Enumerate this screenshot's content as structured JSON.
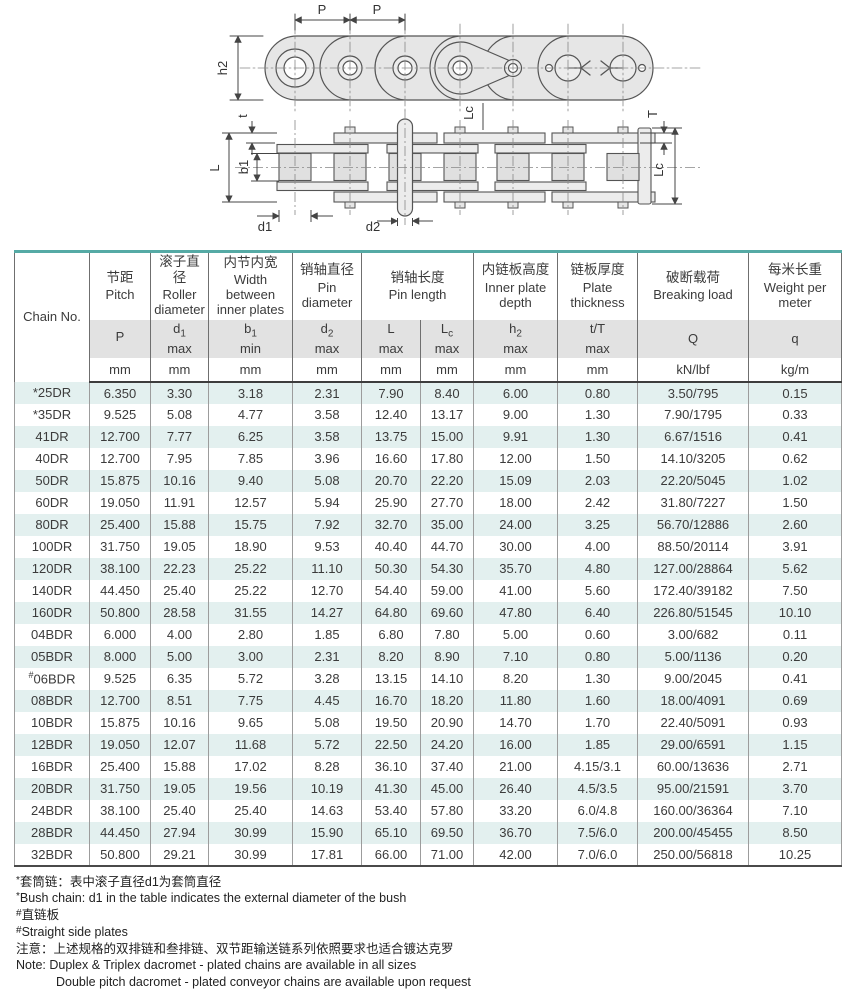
{
  "page": {
    "accent_teal": "#55aaa5"
  },
  "diagram": {
    "side_view": {
      "labels": {
        "p1": "P",
        "p2": "P",
        "h2": "h2"
      }
    },
    "plan_view": {
      "labels": {
        "t": "t",
        "L": "L",
        "b1": "b1",
        "d1": "d1",
        "d2": "d2",
        "lc_top": "Lc",
        "T": "T",
        "lc_right": "Lc"
      }
    }
  },
  "table": {
    "chain_no_label": "Chain No.",
    "columns": {
      "pitch": {
        "cn": "节距",
        "en": "Pitch",
        "sym": "P",
        "sub": "",
        "note": "",
        "unit": "mm"
      },
      "roller": {
        "cn": "滚子直径",
        "en": "Roller diameter",
        "sym": "d",
        "sub": "1",
        "note": "max",
        "unit": "mm"
      },
      "width": {
        "cn": "内节内宽",
        "en": "Width between inner plates",
        "sym": "b",
        "sub": "1",
        "note": "min",
        "unit": "mm"
      },
      "pin_dia": {
        "cn": "销轴直径",
        "en": "Pin diameter",
        "sym": "d",
        "sub": "2",
        "note": "max",
        "unit": "mm"
      },
      "pin_len": {
        "cn": "销轴长度",
        "en": "Pin length"
      },
      "pin_len_l": {
        "sym": "L",
        "sub": "",
        "note": "max",
        "unit": "mm"
      },
      "pin_len_lc": {
        "sym": "L",
        "sub": "c",
        "note": "max",
        "unit": "mm"
      },
      "plate_depth": {
        "cn": "内链板高度",
        "en": "Inner plate depth",
        "sym": "h",
        "sub": "2",
        "note": "max",
        "unit": "mm"
      },
      "plate_thick": {
        "cn": "链板厚度",
        "en": "Plate thickness",
        "sym": "t/T",
        "sub": "",
        "note": "max",
        "unit": "mm"
      },
      "breaking": {
        "cn": "破断载荷",
        "en": "Breaking load",
        "sym": "Q",
        "sub": "",
        "note": "",
        "unit": "kN/lbf"
      },
      "weight": {
        "cn": "每米长重",
        "en": "Weight per meter",
        "sym": "q",
        "sub": "",
        "note": "",
        "unit": "kg/m"
      }
    },
    "rows": [
      [
        "*25DR",
        "6.350",
        "3.30",
        "3.18",
        "2.31",
        "7.90",
        "8.40",
        "6.00",
        "0.80",
        "3.50/795",
        "0.15"
      ],
      [
        "*35DR",
        "9.525",
        "5.08",
        "4.77",
        "3.58",
        "12.40",
        "13.17",
        "9.00",
        "1.30",
        "7.90/1795",
        "0.33"
      ],
      [
        "41DR",
        "12.700",
        "7.77",
        "6.25",
        "3.58",
        "13.75",
        "15.00",
        "9.91",
        "1.30",
        "6.67/1516",
        "0.41"
      ],
      [
        "40DR",
        "12.700",
        "7.95",
        "7.85",
        "3.96",
        "16.60",
        "17.80",
        "12.00",
        "1.50",
        "14.10/3205",
        "0.62"
      ],
      [
        "50DR",
        "15.875",
        "10.16",
        "9.40",
        "5.08",
        "20.70",
        "22.20",
        "15.09",
        "2.03",
        "22.20/5045",
        "1.02"
      ],
      [
        "60DR",
        "19.050",
        "11.91",
        "12.57",
        "5.94",
        "25.90",
        "27.70",
        "18.00",
        "2.42",
        "31.80/7227",
        "1.50"
      ],
      [
        "80DR",
        "25.400",
        "15.88",
        "15.75",
        "7.92",
        "32.70",
        "35.00",
        "24.00",
        "3.25",
        "56.70/12886",
        "2.60"
      ],
      [
        "100DR",
        "31.750",
        "19.05",
        "18.90",
        "9.53",
        "40.40",
        "44.70",
        "30.00",
        "4.00",
        "88.50/20114",
        "3.91"
      ],
      [
        "120DR",
        "38.100",
        "22.23",
        "25.22",
        "11.10",
        "50.30",
        "54.30",
        "35.70",
        "4.80",
        "127.00/28864",
        "5.62"
      ],
      [
        "140DR",
        "44.450",
        "25.40",
        "25.22",
        "12.70",
        "54.40",
        "59.00",
        "41.00",
        "5.60",
        "172.40/39182",
        "7.50"
      ],
      [
        "160DR",
        "50.800",
        "28.58",
        "31.55",
        "14.27",
        "64.80",
        "69.60",
        "47.80",
        "6.40",
        "226.80/51545",
        "10.10"
      ],
      [
        "04BDR",
        "6.000",
        "4.00",
        "2.80",
        "1.85",
        "6.80",
        "7.80",
        "5.00",
        "0.60",
        "3.00/682",
        "0.11"
      ],
      [
        "05BDR",
        "8.000",
        "5.00",
        "3.00",
        "2.31",
        "8.20",
        "8.90",
        "7.10",
        "0.80",
        "5.00/1136",
        "0.20"
      ],
      [
        "#06BDR",
        "9.525",
        "6.35",
        "5.72",
        "3.28",
        "13.15",
        "14.10",
        "8.20",
        "1.30",
        "9.00/2045",
        "0.41"
      ],
      [
        "08BDR",
        "12.700",
        "8.51",
        "7.75",
        "4.45",
        "16.70",
        "18.20",
        "11.80",
        "1.60",
        "18.00/4091",
        "0.69"
      ],
      [
        "10BDR",
        "15.875",
        "10.16",
        "9.65",
        "5.08",
        "19.50",
        "20.90",
        "14.70",
        "1.70",
        "22.40/5091",
        "0.93"
      ],
      [
        "12BDR",
        "19.050",
        "12.07",
        "11.68",
        "5.72",
        "22.50",
        "24.20",
        "16.00",
        "1.85",
        "29.00/6591",
        "1.15"
      ],
      [
        "16BDR",
        "25.400",
        "15.88",
        "17.02",
        "8.28",
        "36.10",
        "37.40",
        "21.00",
        "4.15/3.1",
        "60.00/13636",
        "2.71"
      ],
      [
        "20BDR",
        "31.750",
        "19.05",
        "19.56",
        "10.19",
        "41.30",
        "45.00",
        "26.40",
        "4.5/3.5",
        "95.00/21591",
        "3.70"
      ],
      [
        "24BDR",
        "38.100",
        "25.40",
        "25.40",
        "14.63",
        "53.40",
        "57.80",
        "33.20",
        "6.0/4.8",
        "160.00/36364",
        "7.10"
      ],
      [
        "28BDR",
        "44.450",
        "27.94",
        "30.99",
        "15.90",
        "65.10",
        "69.50",
        "36.70",
        "7.5/6.0",
        "200.00/45455",
        "8.50"
      ],
      [
        "32BDR",
        "50.800",
        "29.21",
        "30.99",
        "17.81",
        "66.00",
        "71.00",
        "42.00",
        "7.0/6.0",
        "250.00/56818",
        "10.25"
      ]
    ]
  },
  "footnotes": [
    {
      "marker": "*",
      "text": "套筒链：表中滚子直径d1为套筒直径",
      "indent": false
    },
    {
      "marker": "*",
      "text": "Bush chain: d1 in the table indicates the external diameter of the bush",
      "indent": false
    },
    {
      "marker": "#",
      "text": "直链板",
      "indent": false
    },
    {
      "marker": "#",
      "text": "Straight side plates",
      "indent": false
    },
    {
      "marker": "",
      "text": "注意：上述规格的双排链和叁排链、双节距输送链系列依照要求也适合镀达克罗",
      "indent": false
    },
    {
      "marker": "",
      "text": "Note: Duplex & Triplex dacromet - plated chains are available in all sizes",
      "indent": false
    },
    {
      "marker": "",
      "text": "Double pitch dacromet - plated conveyor chains are available upon request",
      "indent": true
    }
  ]
}
